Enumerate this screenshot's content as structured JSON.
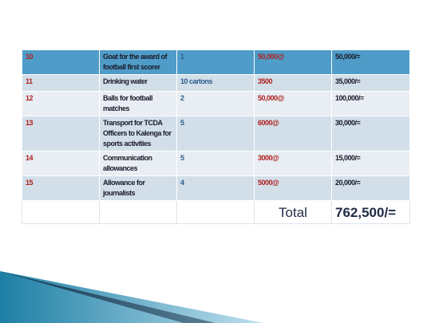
{
  "table": {
    "rows": [
      [
        "10",
        "Goat for the award of football first scorer",
        "1",
        "50,000@",
        "50,000/="
      ],
      [
        "11",
        "Drinking water",
        "10 cartons",
        "3500",
        "35,000/="
      ],
      [
        "12",
        "Balls for football matches",
        "2",
        "50,000@",
        "100,000/="
      ],
      [
        "13",
        "Transport for TCDA Officers to Kalenga for sports activities",
        "5",
        "6000@",
        "30,000/="
      ],
      [
        "14",
        "Communication allowances",
        "5",
        "3000@",
        "15,000/="
      ],
      [
        "15",
        "Allowance for journalists",
        "4",
        "5000@",
        "20,000/="
      ]
    ],
    "total": {
      "label": "Total",
      "amount": "762,500/="
    }
  }
}
